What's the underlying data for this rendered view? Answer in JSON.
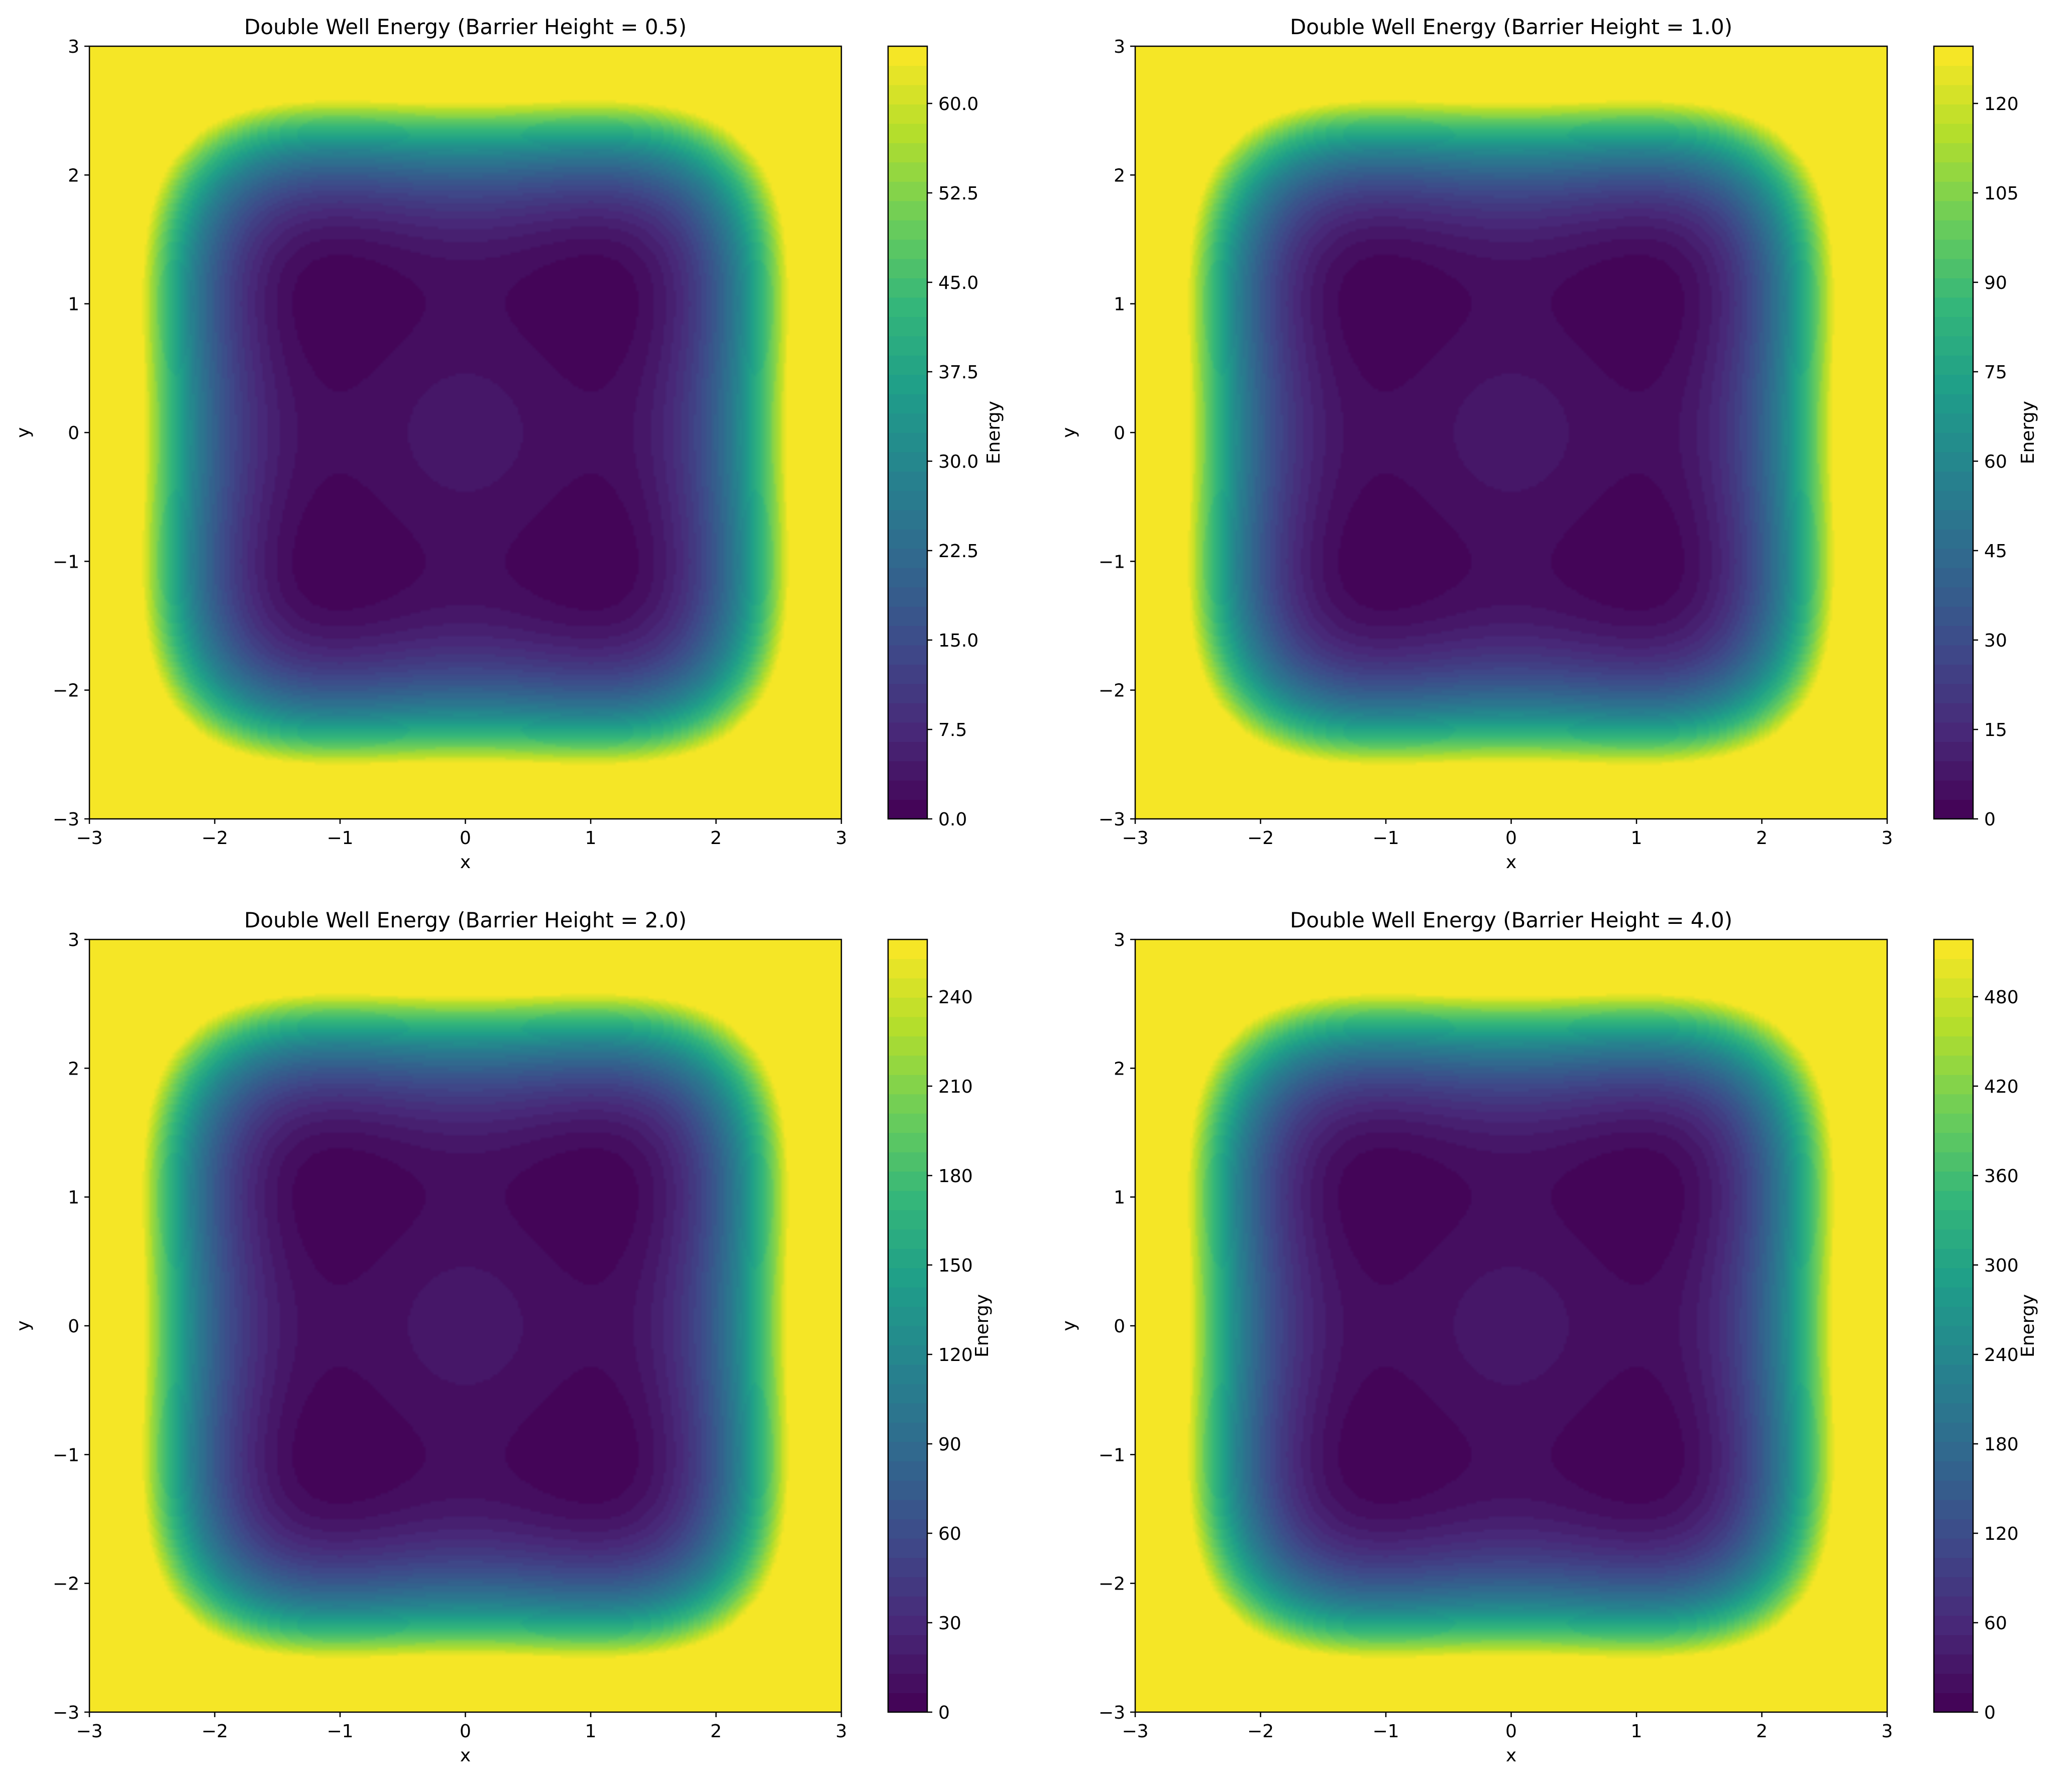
{
  "chart_data": [
    {
      "type": "contourf",
      "title": "Double Well Energy (Barrier Height = 0.5)",
      "barrier_height": 0.5,
      "xlabel": "x",
      "ylabel": "y",
      "xlim": [
        -3,
        3
      ],
      "ylim": [
        -3,
        3
      ],
      "xticks": [
        "−3",
        "−2",
        "−1",
        "0",
        "1",
        "2",
        "3"
      ],
      "yticks": [
        "−3",
        "−2",
        "−1",
        "0",
        "1",
        "2",
        "3"
      ],
      "colorbar": {
        "label": "Energy",
        "range": [
          0,
          64.8
        ],
        "tick_values": [
          0,
          7.5,
          15,
          22.5,
          30,
          37.5,
          45,
          52.5,
          60
        ],
        "tick_labels": [
          "0.0",
          "7.5",
          "15.0",
          "22.5",
          "30.0",
          "37.5",
          "45.0",
          "52.5",
          "60.0"
        ]
      },
      "grid": false
    },
    {
      "type": "contourf",
      "title": "Double Well Energy (Barrier Height = 1.0)",
      "barrier_height": 1.0,
      "xlabel": "x",
      "ylabel": "y",
      "xlim": [
        -3,
        3
      ],
      "ylim": [
        -3,
        3
      ],
      "xticks": [
        "−3",
        "−2",
        "−1",
        "0",
        "1",
        "2",
        "3"
      ],
      "yticks": [
        "−3",
        "−2",
        "−1",
        "0",
        "1",
        "2",
        "3"
      ],
      "colorbar": {
        "label": "Energy",
        "range": [
          0,
          129.6
        ],
        "tick_values": [
          0,
          15,
          30,
          45,
          60,
          75,
          90,
          105,
          120
        ],
        "tick_labels": [
          "0",
          "15",
          "30",
          "45",
          "60",
          "75",
          "90",
          "105",
          "120"
        ]
      },
      "grid": false
    },
    {
      "type": "contourf",
      "title": "Double Well Energy (Barrier Height = 2.0)",
      "barrier_height": 2.0,
      "xlabel": "x",
      "ylabel": "y",
      "xlim": [
        -3,
        3
      ],
      "ylim": [
        -3,
        3
      ],
      "xticks": [
        "−3",
        "−2",
        "−1",
        "0",
        "1",
        "2",
        "3"
      ],
      "yticks": [
        "−3",
        "−2",
        "−1",
        "0",
        "1",
        "2",
        "3"
      ],
      "colorbar": {
        "label": "Energy",
        "range": [
          0,
          259.2
        ],
        "tick_values": [
          0,
          30,
          60,
          90,
          120,
          150,
          180,
          210,
          240
        ],
        "tick_labels": [
          "0",
          "30",
          "60",
          "90",
          "120",
          "150",
          "180",
          "210",
          "240"
        ]
      },
      "grid": false
    },
    {
      "type": "contourf",
      "title": "Double Well Energy (Barrier Height = 4.0)",
      "barrier_height": 4.0,
      "xlabel": "x",
      "ylabel": "y",
      "xlim": [
        -3,
        3
      ],
      "ylim": [
        -3,
        3
      ],
      "xticks": [
        "−3",
        "−2",
        "−1",
        "0",
        "1",
        "2",
        "3"
      ],
      "yticks": [
        "−3",
        "−2",
        "−1",
        "0",
        "1",
        "2",
        "3"
      ],
      "colorbar": {
        "label": "Energy",
        "range": [
          0,
          518.4
        ],
        "tick_values": [
          0,
          60,
          120,
          180,
          240,
          300,
          360,
          420,
          480
        ],
        "tick_labels": [
          "0",
          "60",
          "120",
          "180",
          "240",
          "300",
          "360",
          "420",
          "480"
        ]
      },
      "grid": false
    }
  ],
  "colormap": "viridis",
  "colormap_stops": [
    "#440154",
    "#482878",
    "#3e4a89",
    "#31688e",
    "#26828e",
    "#1f9e89",
    "#35b779",
    "#6ece58",
    "#b5de2b",
    "#fde725"
  ]
}
